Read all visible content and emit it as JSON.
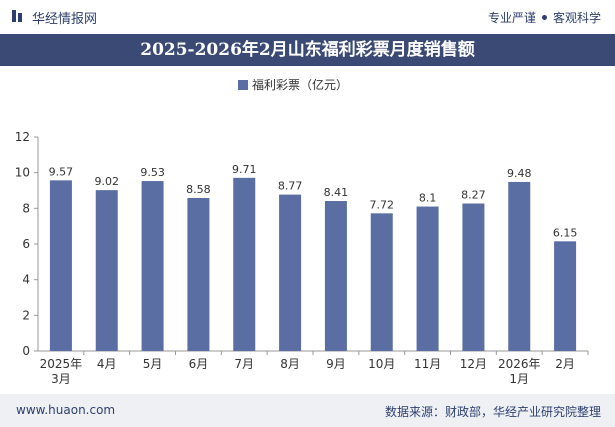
{
  "header": {
    "site_name": "华经情报网",
    "tagline_left": "专业严谨",
    "tagline_right": "客观科学"
  },
  "colors": {
    "bar": "#5a6ea4",
    "title_band": "#3a4a75",
    "brand": "#2d3f6e"
  },
  "chart_data": {
    "type": "bar",
    "title": "2025-2026年2月山东福利彩票月度销售额",
    "categories": [
      "2025年3月",
      "4月",
      "5月",
      "6月",
      "7月",
      "8月",
      "9月",
      "10月",
      "11月",
      "12月",
      "2026年1月",
      "2月"
    ],
    "category_lines": [
      [
        "2025年",
        "3月"
      ],
      [
        "4月"
      ],
      [
        "5月"
      ],
      [
        "6月"
      ],
      [
        "7月"
      ],
      [
        "8月"
      ],
      [
        "9月"
      ],
      [
        "10月"
      ],
      [
        "11月"
      ],
      [
        "12月"
      ],
      [
        "2026年",
        "1月"
      ],
      [
        "2月"
      ]
    ],
    "series": [
      {
        "name": "福利彩票（亿元）",
        "values": [
          9.57,
          9.02,
          9.53,
          8.58,
          9.71,
          8.77,
          8.41,
          7.72,
          8.1,
          8.27,
          9.48,
          6.15
        ]
      }
    ],
    "data_labels": [
      "9.57",
      "9.02",
      "9.53",
      "8.58",
      "9.71",
      "8.77",
      "8.41",
      "7.72",
      "8.1",
      "8.27",
      "9.48",
      "6.15"
    ],
    "ylim": [
      0,
      12
    ],
    "yticks": [
      "0",
      "2",
      "4",
      "6",
      "8",
      "10",
      "12"
    ],
    "legend_position": "top-center",
    "grid": false
  },
  "footer": {
    "url": "www.huaon.com",
    "source": "数据来源：财政部，华经产业研究院整理"
  }
}
